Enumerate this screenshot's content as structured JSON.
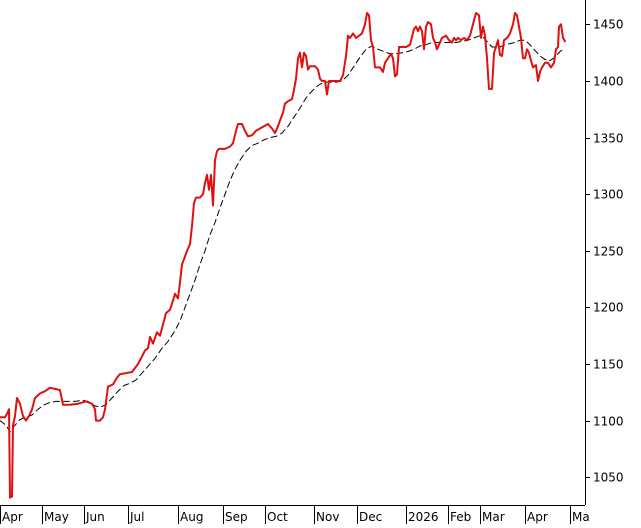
{
  "chart_data": {
    "type": "line",
    "y_tick_labels": [
      "1050",
      "1100",
      "1150",
      "1200",
      "1250",
      "1300",
      "1350",
      "1400",
      "1450"
    ],
    "y_ticks": [
      1050,
      1100,
      1150,
      1200,
      1250,
      1300,
      1350,
      1400,
      1450
    ],
    "ylim": [
      1025.5,
      1471.5
    ],
    "x_tick_labels": [
      "Apr",
      "May",
      "Jun",
      "Jul",
      "Aug",
      "Sep",
      "Oct",
      "Nov",
      "Dec",
      "2026",
      "Feb",
      "Mar",
      "Apr",
      "Ma"
    ],
    "grid": false,
    "series": [
      {
        "color": "#e01010",
        "style": "solid",
        "points": [
          [
            0,
            1103
          ],
          [
            5,
            1103
          ],
          [
            7,
            1106
          ],
          [
            9,
            1110
          ],
          [
            10,
            1032
          ],
          [
            12,
            1033
          ],
          [
            13,
            1096
          ],
          [
            15,
            1104
          ],
          [
            17,
            1120
          ],
          [
            20,
            1115
          ],
          [
            23,
            1104
          ],
          [
            26,
            1100
          ],
          [
            29,
            1104
          ],
          [
            32,
            1110
          ],
          [
            35,
            1120
          ],
          [
            40,
            1124
          ],
          [
            45,
            1126
          ],
          [
            50,
            1129
          ],
          [
            55,
            1128
          ],
          [
            60,
            1127
          ],
          [
            63,
            1114
          ],
          [
            70,
            1114
          ],
          [
            78,
            1115
          ],
          [
            86,
            1117
          ],
          [
            92,
            1115
          ],
          [
            95,
            1110
          ],
          [
            96,
            1100
          ],
          [
            100,
            1100
          ],
          [
            103,
            1103
          ],
          [
            105,
            1110
          ],
          [
            108,
            1130
          ],
          [
            113,
            1132
          ],
          [
            117,
            1138
          ],
          [
            120,
            1141
          ],
          [
            126,
            1142
          ],
          [
            132,
            1143
          ],
          [
            138,
            1150
          ],
          [
            141,
            1155
          ],
          [
            145,
            1162
          ],
          [
            148,
            1164
          ],
          [
            150,
            1174
          ],
          [
            153,
            1168
          ],
          [
            157,
            1178
          ],
          [
            160,
            1175
          ],
          [
            163,
            1185
          ],
          [
            166,
            1195
          ],
          [
            170,
            1198
          ],
          [
            173,
            1206
          ],
          [
            175,
            1212
          ],
          [
            178,
            1208
          ],
          [
            180,
            1222
          ],
          [
            182,
            1238
          ],
          [
            185,
            1245
          ],
          [
            187,
            1250
          ],
          [
            190,
            1256
          ],
          [
            192,
            1272
          ],
          [
            194,
            1292
          ],
          [
            196,
            1297
          ],
          [
            200,
            1297
          ],
          [
            203,
            1300
          ],
          [
            205,
            1310
          ],
          [
            207,
            1317
          ],
          [
            209,
            1304
          ],
          [
            211,
            1317
          ],
          [
            213,
            1290
          ],
          [
            215,
            1330
          ],
          [
            217,
            1338
          ],
          [
            219,
            1340
          ],
          [
            225,
            1340
          ],
          [
            230,
            1342
          ],
          [
            233,
            1345
          ],
          [
            236,
            1356
          ],
          [
            238,
            1362
          ],
          [
            242,
            1362
          ],
          [
            245,
            1356
          ],
          [
            248,
            1351
          ],
          [
            252,
            1352
          ],
          [
            256,
            1356
          ],
          [
            260,
            1358
          ],
          [
            264,
            1360
          ],
          [
            268,
            1362
          ],
          [
            272,
            1358
          ],
          [
            275,
            1354
          ],
          [
            278,
            1360
          ],
          [
            280,
            1365
          ],
          [
            283,
            1372
          ],
          [
            285,
            1380
          ],
          [
            288,
            1382
          ],
          [
            292,
            1384
          ],
          [
            294,
            1392
          ],
          [
            296,
            1402
          ],
          [
            298,
            1420
          ],
          [
            300,
            1425
          ],
          [
            302,
            1412
          ],
          [
            304,
            1425
          ],
          [
            306,
            1422
          ],
          [
            308,
            1410
          ],
          [
            310,
            1413
          ],
          [
            315,
            1413
          ],
          [
            318,
            1410
          ],
          [
            320,
            1402
          ],
          [
            322,
            1400
          ],
          [
            325,
            1400
          ],
          [
            327,
            1388
          ],
          [
            329,
            1400
          ],
          [
            333,
            1400
          ],
          [
            336,
            1400
          ],
          [
            340,
            1400
          ],
          [
            343,
            1405
          ],
          [
            346,
            1422
          ],
          [
            348,
            1440
          ],
          [
            350,
            1438
          ],
          [
            353,
            1442
          ],
          [
            356,
            1438
          ],
          [
            359,
            1440
          ],
          [
            362,
            1442
          ],
          [
            365,
            1450
          ],
          [
            367,
            1460
          ],
          [
            369,
            1458
          ],
          [
            371,
            1436
          ],
          [
            373,
            1430
          ],
          [
            375,
            1412
          ],
          [
            380,
            1412
          ],
          [
            383,
            1408
          ],
          [
            385,
            1416
          ],
          [
            388,
            1420
          ],
          [
            391,
            1424
          ],
          [
            393,
            1420
          ],
          [
            395,
            1404
          ],
          [
            397,
            1406
          ],
          [
            399,
            1430
          ],
          [
            402,
            1430
          ],
          [
            406,
            1430
          ],
          [
            410,
            1432
          ],
          [
            414,
            1446
          ],
          [
            416,
            1448
          ],
          [
            418,
            1444
          ],
          [
            420,
            1448
          ],
          [
            422,
            1444
          ],
          [
            424,
            1428
          ],
          [
            426,
            1448
          ],
          [
            428,
            1452
          ],
          [
            431,
            1450
          ],
          [
            433,
            1438
          ],
          [
            435,
            1434
          ],
          [
            437,
            1428
          ],
          [
            439,
            1432
          ],
          [
            442,
            1438
          ],
          [
            446,
            1440
          ],
          [
            449,
            1436
          ],
          [
            452,
            1434
          ],
          [
            454,
            1438
          ],
          [
            456,
            1436
          ],
          [
            458,
            1438
          ],
          [
            461,
            1436
          ],
          [
            464,
            1438
          ],
          [
            467,
            1436
          ],
          [
            470,
            1440
          ],
          [
            473,
            1450
          ],
          [
            476,
            1460
          ],
          [
            479,
            1458
          ],
          [
            481,
            1438
          ],
          [
            483,
            1448
          ],
          [
            485,
            1440
          ],
          [
            487,
            1420
          ],
          [
            489,
            1393
          ],
          [
            492,
            1393
          ],
          [
            494,
            1425
          ],
          [
            496,
            1430
          ],
          [
            498,
            1436
          ],
          [
            500,
            1423
          ],
          [
            502,
            1422
          ],
          [
            504,
            1436
          ],
          [
            507,
            1438
          ],
          [
            510,
            1442
          ],
          [
            513,
            1450
          ],
          [
            515,
            1460
          ],
          [
            517,
            1458
          ],
          [
            519,
            1448
          ],
          [
            521,
            1438
          ],
          [
            523,
            1420
          ],
          [
            525,
            1420
          ],
          [
            527,
            1428
          ],
          [
            529,
            1425
          ],
          [
            531,
            1418
          ],
          [
            533,
            1412
          ],
          [
            536,
            1414
          ],
          [
            538,
            1400
          ],
          [
            540,
            1408
          ],
          [
            542,
            1412
          ],
          [
            545,
            1416
          ],
          [
            548,
            1416
          ],
          [
            551,
            1412
          ],
          [
            554,
            1416
          ],
          [
            556,
            1428
          ],
          [
            558,
            1430
          ],
          [
            559,
            1448
          ],
          [
            561,
            1450
          ],
          [
            563,
            1438
          ],
          [
            565,
            1435
          ]
        ]
      },
      {
        "color": "#000000",
        "style": "dashed",
        "points": [
          [
            0,
            1100
          ],
          [
            6,
            1096
          ],
          [
            10,
            1090
          ],
          [
            14,
            1095
          ],
          [
            20,
            1101
          ],
          [
            26,
            1103
          ],
          [
            32,
            1105
          ],
          [
            38,
            1110
          ],
          [
            44,
            1114
          ],
          [
            50,
            1116
          ],
          [
            56,
            1117
          ],
          [
            62,
            1117
          ],
          [
            68,
            1117
          ],
          [
            75,
            1117
          ],
          [
            82,
            1118
          ],
          [
            88,
            1117
          ],
          [
            95,
            1113
          ],
          [
            100,
            1112
          ],
          [
            106,
            1114
          ],
          [
            112,
            1120
          ],
          [
            118,
            1126
          ],
          [
            124,
            1131
          ],
          [
            130,
            1133
          ],
          [
            136,
            1136
          ],
          [
            142,
            1142
          ],
          [
            148,
            1148
          ],
          [
            155,
            1155
          ],
          [
            162,
            1164
          ],
          [
            168,
            1170
          ],
          [
            174,
            1178
          ],
          [
            180,
            1188
          ],
          [
            185,
            1200
          ],
          [
            190,
            1212
          ],
          [
            195,
            1224
          ],
          [
            200,
            1238
          ],
          [
            205,
            1250
          ],
          [
            210,
            1264
          ],
          [
            215,
            1275
          ],
          [
            220,
            1288
          ],
          [
            225,
            1300
          ],
          [
            230,
            1312
          ],
          [
            235,
            1322
          ],
          [
            240,
            1330
          ],
          [
            246,
            1338
          ],
          [
            252,
            1343
          ],
          [
            258,
            1345
          ],
          [
            264,
            1348
          ],
          [
            270,
            1350
          ],
          [
            276,
            1351
          ],
          [
            282,
            1354
          ],
          [
            288,
            1360
          ],
          [
            294,
            1368
          ],
          [
            300,
            1376
          ],
          [
            306,
            1385
          ],
          [
            312,
            1391
          ],
          [
            318,
            1396
          ],
          [
            324,
            1399
          ],
          [
            330,
            1399
          ],
          [
            336,
            1399
          ],
          [
            342,
            1400
          ],
          [
            348,
            1405
          ],
          [
            354,
            1413
          ],
          [
            360,
            1421
          ],
          [
            366,
            1428
          ],
          [
            372,
            1431
          ],
          [
            378,
            1428
          ],
          [
            384,
            1426
          ],
          [
            390,
            1424
          ],
          [
            396,
            1424
          ],
          [
            402,
            1425
          ],
          [
            408,
            1426
          ],
          [
            414,
            1428
          ],
          [
            420,
            1431
          ],
          [
            426,
            1432
          ],
          [
            432,
            1434
          ],
          [
            438,
            1434
          ],
          [
            444,
            1434
          ],
          [
            450,
            1434
          ],
          [
            456,
            1434
          ],
          [
            462,
            1435
          ],
          [
            468,
            1436
          ],
          [
            474,
            1438
          ],
          [
            480,
            1440
          ],
          [
            484,
            1438
          ],
          [
            488,
            1434
          ],
          [
            492,
            1430
          ],
          [
            496,
            1430
          ],
          [
            500,
            1430
          ],
          [
            505,
            1432
          ],
          [
            510,
            1433
          ],
          [
            515,
            1434
          ],
          [
            520,
            1436
          ],
          [
            525,
            1436
          ],
          [
            530,
            1432
          ],
          [
            535,
            1427
          ],
          [
            540,
            1422
          ],
          [
            545,
            1419
          ],
          [
            550,
            1418
          ],
          [
            555,
            1421
          ],
          [
            560,
            1426
          ],
          [
            565,
            1429
          ]
        ]
      }
    ]
  }
}
